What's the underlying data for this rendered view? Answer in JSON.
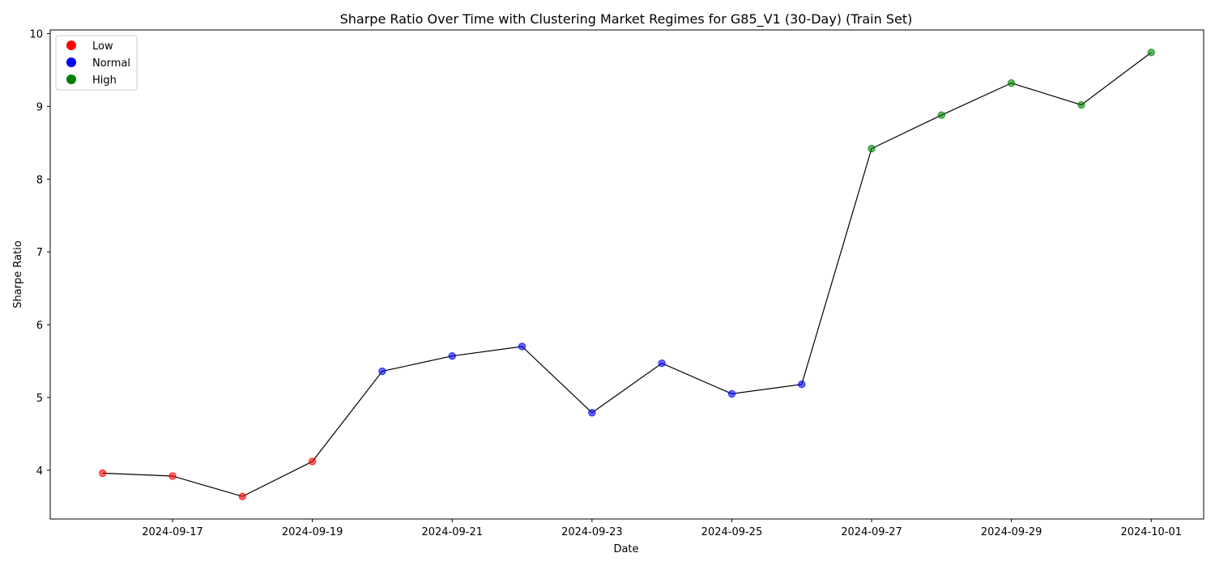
{
  "chart_data": {
    "type": "scatter",
    "title": "Sharpe Ratio Over Time with Clustering Market Regimes for G85_V1 (30-Day) (Train Set)",
    "xlabel": "Date",
    "ylabel": "Sharpe Ratio",
    "xlim": [
      "2024-09-15T06:00",
      "2024-10-01T18:00"
    ],
    "ylim": [
      3.33,
      10.05
    ],
    "x_ticks": [
      "2024-09-17",
      "2024-09-19",
      "2024-09-21",
      "2024-09-23",
      "2024-09-25",
      "2024-09-27",
      "2024-09-29",
      "2024-10-01"
    ],
    "y_ticks": [
      4,
      5,
      6,
      7,
      8,
      9,
      10
    ],
    "grid": false,
    "legend_position": "top-left",
    "line_color": "#000000",
    "series": [
      {
        "name": "Low",
        "color": "#ff0000",
        "points": [
          {
            "x": "2024-09-16",
            "y": 3.96
          },
          {
            "x": "2024-09-17",
            "y": 3.92
          },
          {
            "x": "2024-09-18",
            "y": 3.64
          },
          {
            "x": "2024-09-19",
            "y": 4.12
          }
        ]
      },
      {
        "name": "Normal",
        "color": "#0000ff",
        "points": [
          {
            "x": "2024-09-20",
            "y": 5.36
          },
          {
            "x": "2024-09-21",
            "y": 5.57
          },
          {
            "x": "2024-09-22",
            "y": 5.7
          },
          {
            "x": "2024-09-23",
            "y": 4.79
          },
          {
            "x": "2024-09-24",
            "y": 5.47
          },
          {
            "x": "2024-09-25",
            "y": 5.05
          },
          {
            "x": "2024-09-26",
            "y": 5.18
          }
        ]
      },
      {
        "name": "High",
        "color": "#008000",
        "points": [
          {
            "x": "2024-09-27",
            "y": 8.42
          },
          {
            "x": "2024-09-28",
            "y": 8.88
          },
          {
            "x": "2024-09-29",
            "y": 9.32
          },
          {
            "x": "2024-09-30",
            "y": 9.02
          },
          {
            "x": "2024-10-01",
            "y": 9.74
          }
        ]
      }
    ]
  }
}
